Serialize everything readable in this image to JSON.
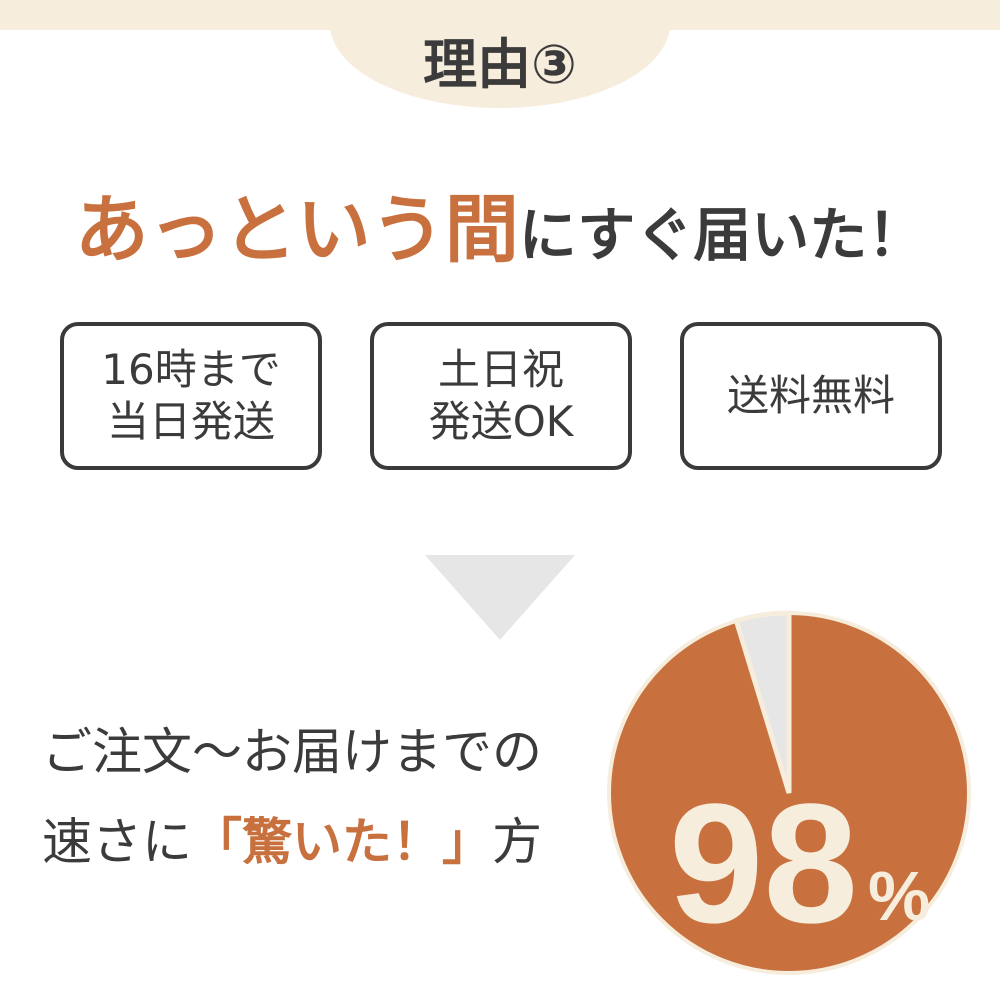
{
  "header": {
    "title": "理由③"
  },
  "headline": {
    "accent": "あっという間",
    "rest": "にすぐ届いた！"
  },
  "features": [
    {
      "line1": "16時まで",
      "line2": "当日発送"
    },
    {
      "line1": "土日祝",
      "line2": "発送OK"
    },
    {
      "line1": "送料無料",
      "line2": ""
    }
  ],
  "lead": {
    "line1": "ご注文〜お届けまでの",
    "line2_pre": "速さに",
    "line2_accent": "「驚いた！」",
    "line2_post": "方"
  },
  "pie": {
    "value": 98,
    "label": "98",
    "unit": "%",
    "colors": {
      "main": "#c8713f",
      "rest": "#e6e6e6",
      "outline": "#f6eddd",
      "text": "#f6eddd"
    }
  }
}
